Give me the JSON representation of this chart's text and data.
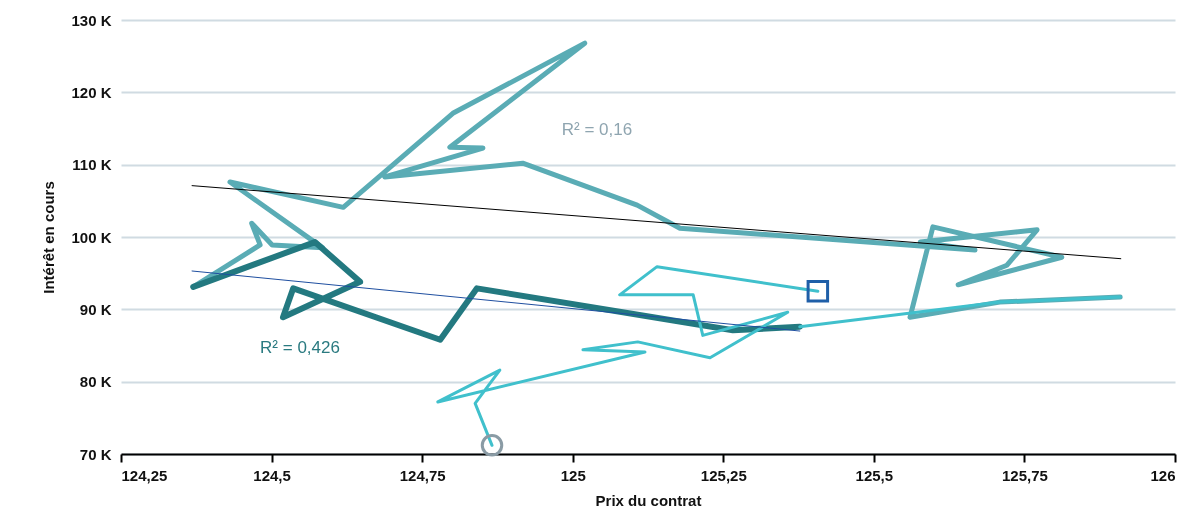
{
  "chart_data": {
    "type": "line",
    "xlabel": "Prix du contrat",
    "ylabel": "Intérêt en cours",
    "xlim": [
      124.25,
      126
    ],
    "ylim": [
      70000,
      130000
    ],
    "xticks": [
      {
        "value": 124.25,
        "label": "124,25"
      },
      {
        "value": 124.5,
        "label": "124,5"
      },
      {
        "value": 124.75,
        "label": "124,75"
      },
      {
        "value": 125,
        "label": "125"
      },
      {
        "value": 125.25,
        "label": "125,25"
      },
      {
        "value": 125.5,
        "label": "125,5"
      },
      {
        "value": 125.75,
        "label": "125,75"
      },
      {
        "value": 126,
        "label": "126"
      }
    ],
    "yticks": [
      {
        "value": 70000,
        "label": "70 K"
      },
      {
        "value": 80000,
        "label": "80 K"
      },
      {
        "value": 90000,
        "label": "90 K"
      },
      {
        "value": 100000,
        "label": "100 K"
      },
      {
        "value": 110000,
        "label": "110 K"
      },
      {
        "value": 120000,
        "label": "120 K"
      },
      {
        "value": 130000,
        "label": "130 K"
      }
    ],
    "grid": "y",
    "marker": "none",
    "series": [
      {
        "color": "#5aacb5",
        "x": [
          124.37,
          124.481,
          124.467,
          124.501,
          124.585,
          124.431,
          124.619,
          124.685,
          124.801,
          125.02,
          124.796,
          124.851,
          124.688,
          124.917,
          125.107,
          125.178,
          125.668,
          125.577,
          125.771,
          125.721,
          125.64,
          125.812,
          125.598,
          125.56,
          125.709,
          125.909
        ],
        "values": [
          93100,
          98900,
          101900,
          98900,
          98500,
          107600,
          104100,
          108800,
          117100,
          126800,
          112400,
          112300,
          108300,
          110200,
          104400,
          101200,
          98200,
          99300,
          101000,
          96100,
          93400,
          97200,
          101400,
          88900,
          91000,
          91700
        ]
      },
      {
        "color": "#237980",
        "x": [
          125.377,
          125.266,
          124.841,
          124.78,
          124.536,
          124.519,
          124.647,
          124.572,
          124.37
        ],
        "values": [
          87600,
          87100,
          92900,
          85800,
          92900,
          88900,
          93800,
          99300,
          93100
        ]
      },
      {
        "color": "#40c0cc",
        "x": [
          125.407,
          125.14,
          125.078,
          125.2,
          125.216,
          125.357,
          125.228,
          125.108,
          125.017,
          125.12,
          124.776,
          124.879,
          124.838,
          124.866
        ],
        "values": [
          92500,
          95900,
          92000,
          92000,
          86400,
          89600,
          83300,
          85500,
          84400,
          84100,
          77200,
          81600,
          77000,
          71200
        ]
      },
      {
        "color": "#40c0cc",
        "x": [
          125.377,
          125.709,
          125.909
        ],
        "values": [
          87600,
          91000,
          91700
        ]
      },
      {
        "color": "#000000",
        "x": [
          124.368,
          125.91
        ],
        "values": [
          107100,
          97000
        ]
      },
      {
        "color": "#1f4fa0",
        "x": [
          124.368,
          125.377
        ],
        "values": [
          95300,
          87000
        ]
      },
      {
        "type": "scatter",
        "color": "#1f5fa8",
        "marker": "square",
        "x": [
          125.407
        ],
        "values": [
          92500
        ]
      },
      {
        "type": "scatter",
        "color": "#8a9ba5",
        "marker": "circle",
        "x": [
          124.866
        ],
        "values": [
          71200
        ]
      }
    ],
    "annotations": [
      "R² = 0,16",
      "R² = 0,426"
    ]
  }
}
